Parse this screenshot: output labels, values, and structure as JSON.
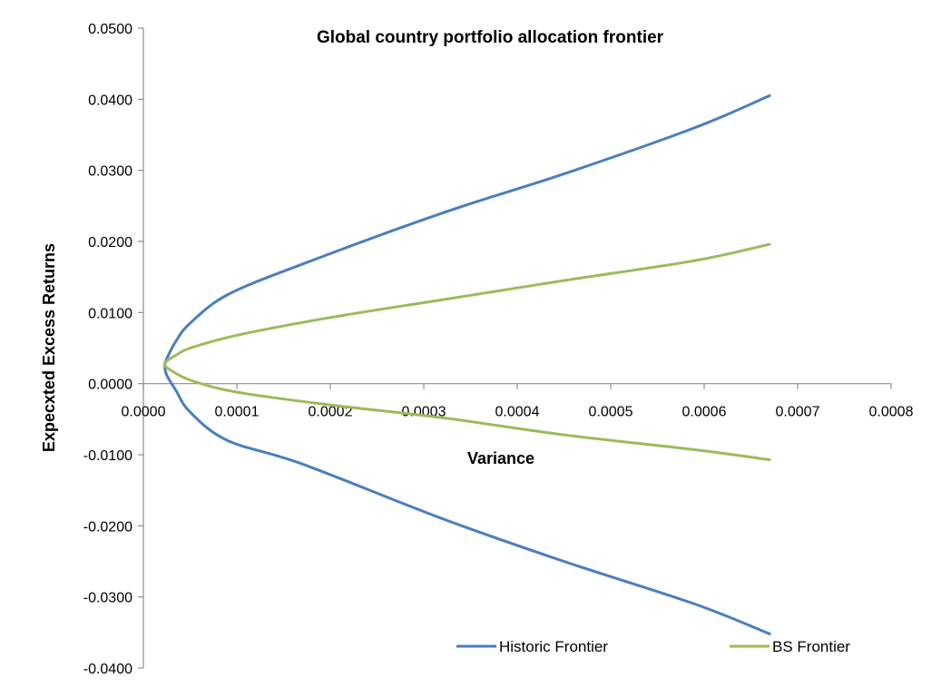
{
  "chart_data": {
    "type": "line",
    "title": "Global country portfolio allocation frontier",
    "xlabel": "Variance",
    "ylabel": "Expecxted Excess Returns",
    "xlim": [
      0,
      0.0008
    ],
    "ylim": [
      -0.04,
      0.05
    ],
    "x_ticks": [
      "0.0000",
      "0.0001",
      "0.0002",
      "0.0003",
      "0.0004",
      "0.0005",
      "0.0006",
      "0.0007",
      "0.0008"
    ],
    "y_ticks": [
      "0.0500",
      "0.0400",
      "0.0300",
      "0.0200",
      "0.0100",
      "0.0000",
      "-0.0100",
      "-0.0200",
      "-0.0300",
      "-0.0400"
    ],
    "grid": false,
    "legend_position": "bottom",
    "series": [
      {
        "name": "Historic Frontier",
        "color": "#4a7ebf",
        "points": [
          [
            0.00067,
            0.0405
          ],
          [
            0.00059,
            0.036
          ],
          [
            0.00045,
            0.0295
          ],
          [
            0.00032,
            0.024
          ],
          [
            0.00017,
            0.0168
          ],
          [
            9e-05,
            0.0125
          ],
          [
            5e-05,
            0.0085
          ],
          [
            3.5e-05,
            0.006
          ],
          [
            2.5e-05,
            0.0035
          ],
          [
            2.3e-05,
            0.0025
          ],
          [
            2.5e-05,
            0.0012
          ],
          [
            3.5e-05,
            -0.001
          ],
          [
            5e-05,
            -0.004
          ],
          [
            9e-05,
            -0.008
          ],
          [
            0.00017,
            -0.0113
          ],
          [
            0.00032,
            -0.019
          ],
          [
            0.00045,
            -0.025
          ],
          [
            0.00059,
            -0.031
          ],
          [
            0.00067,
            -0.0352
          ]
        ]
      },
      {
        "name": "BS Frontier",
        "color": "#9bbb59",
        "points": [
          [
            0.00067,
            0.0196
          ],
          [
            0.00059,
            0.0173
          ],
          [
            0.00045,
            0.0145
          ],
          [
            0.00032,
            0.0118
          ],
          [
            0.0002,
            0.0093
          ],
          [
            0.0001,
            0.0068
          ],
          [
            5e-05,
            0.005
          ],
          [
            3.5e-05,
            0.004
          ],
          [
            2.5e-05,
            0.0032
          ],
          [
            2.3e-05,
            0.0026
          ],
          [
            2.8e-05,
            0.002
          ],
          [
            5e-05,
            0.0005
          ],
          [
            0.0001,
            -0.0012
          ],
          [
            0.0002,
            -0.003
          ],
          [
            0.00032,
            -0.0048
          ],
          [
            0.00045,
            -0.0072
          ],
          [
            0.00059,
            -0.0093
          ],
          [
            0.00067,
            -0.0107
          ]
        ]
      }
    ]
  }
}
